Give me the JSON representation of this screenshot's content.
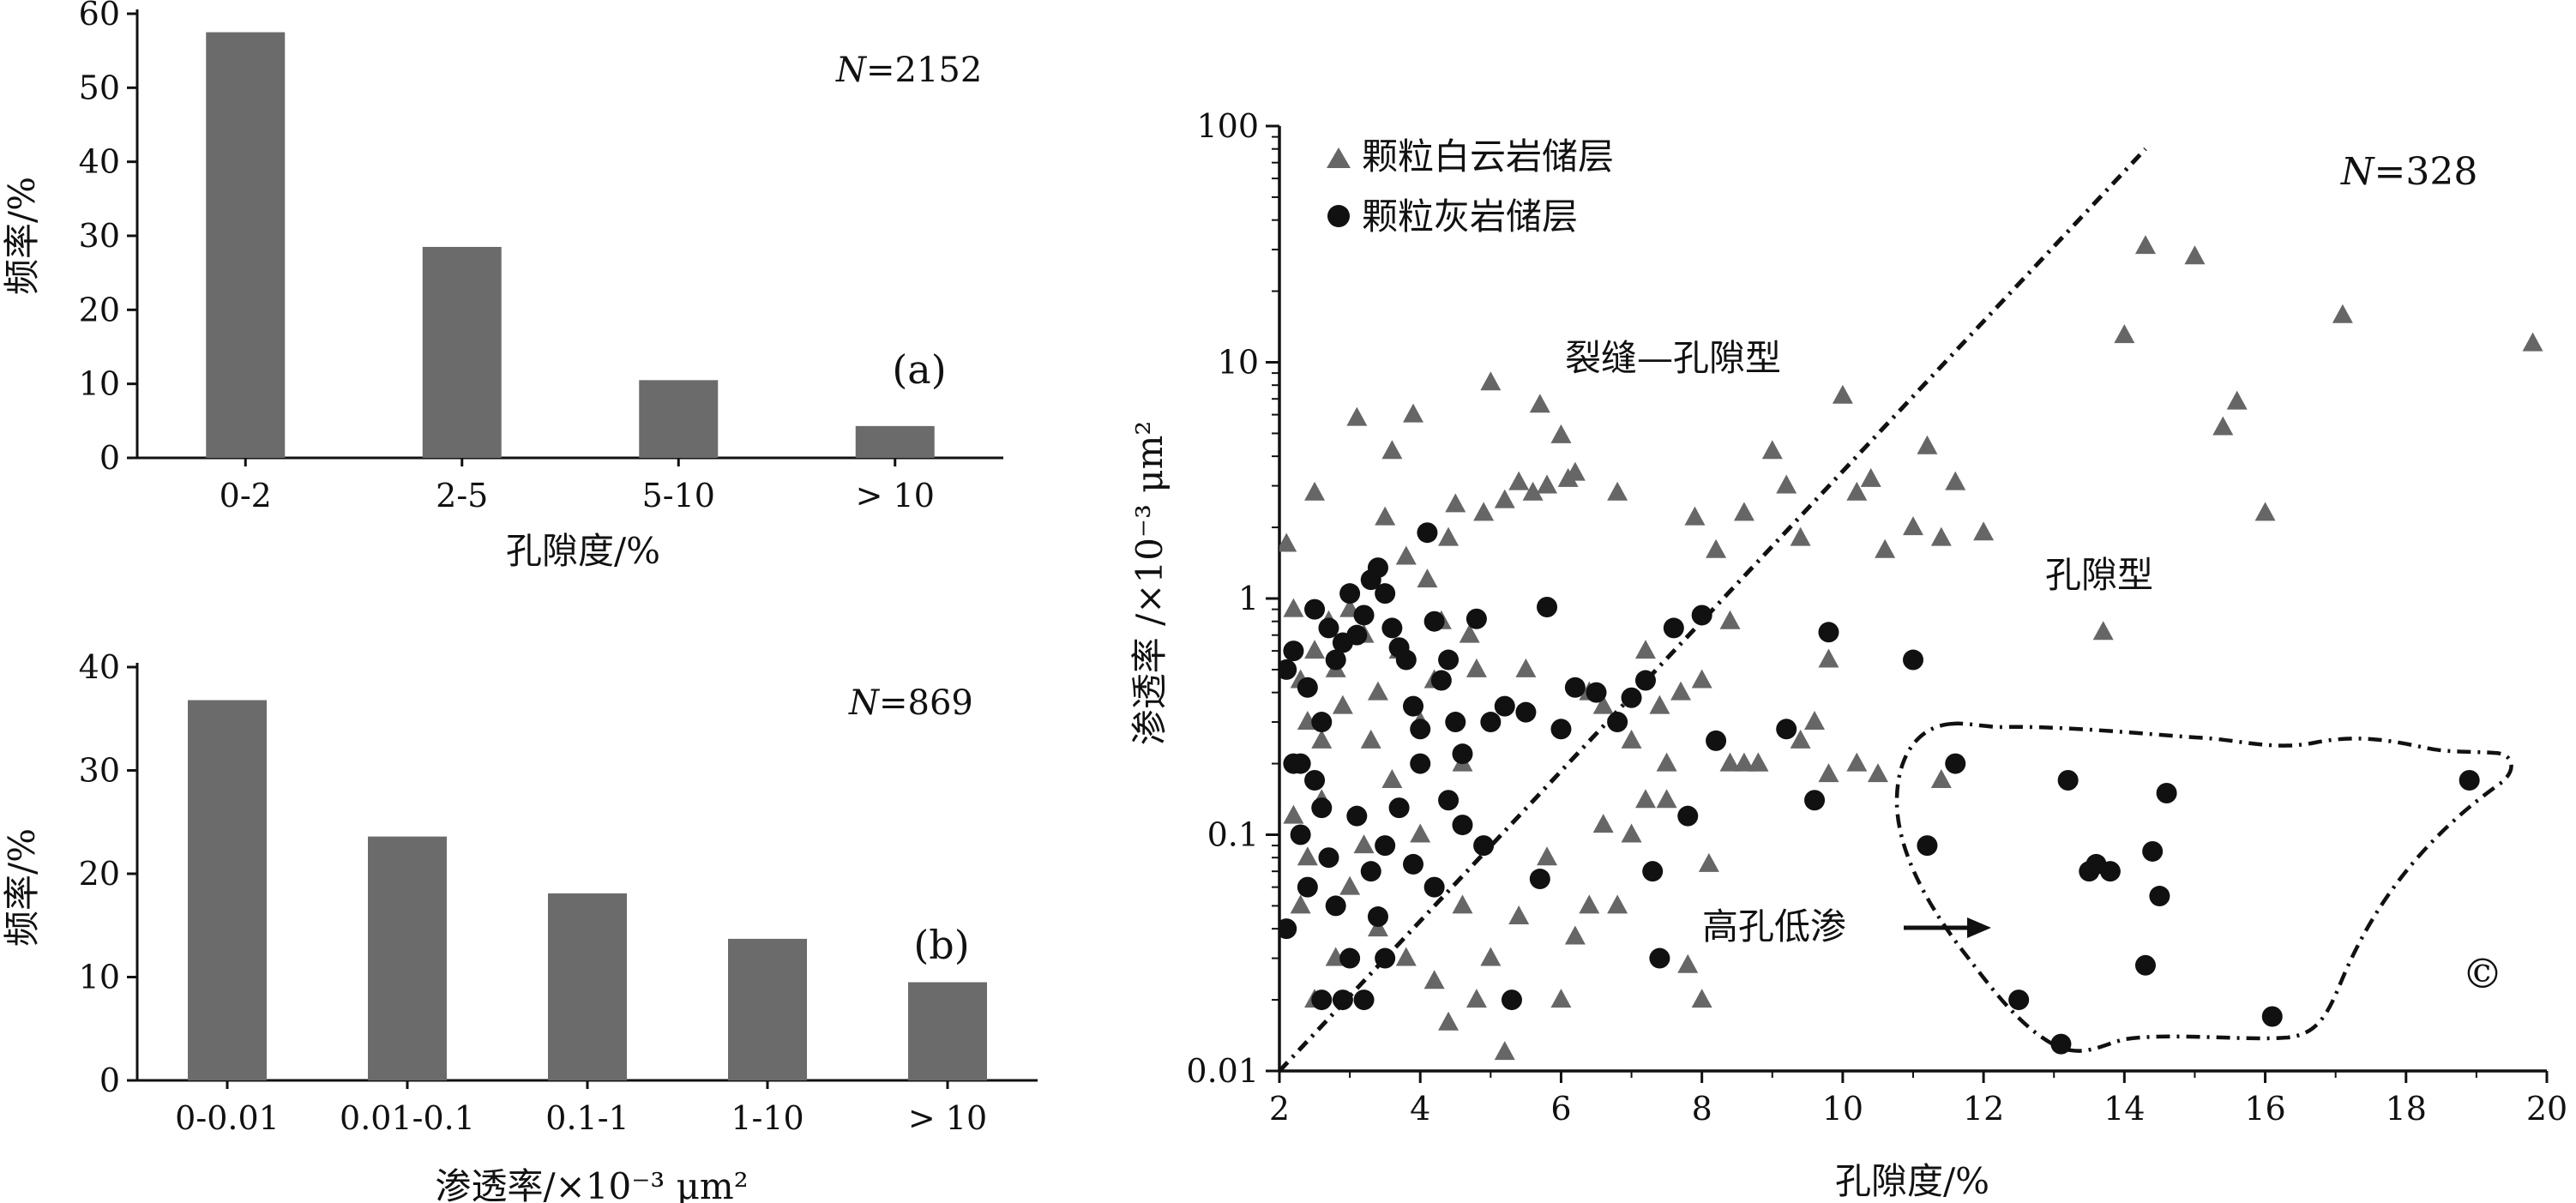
{
  "chart_data": [
    {
      "panel": "(a)",
      "type": "bar",
      "n_label": "N=2152",
      "n_italic": "N",
      "n_value": "=2152",
      "ylabel": "频率/%",
      "xlabel": "孔隙度/%",
      "ylim": [
        0,
        60
      ],
      "yticks": [
        0,
        10,
        20,
        30,
        40,
        50,
        60
      ],
      "categories": [
        "0-2",
        "2-5",
        "5-10",
        "> 10"
      ],
      "values": [
        57.5,
        28.5,
        10.5,
        4.3
      ],
      "bar_color": "#6b6b6b"
    },
    {
      "panel": "(b)",
      "type": "bar",
      "n_label": "N=869",
      "n_italic": "N",
      "n_value": "=869",
      "ylabel": "频率/%",
      "xlabel": "渗透率/×10⁻³ μm²",
      "ylim": [
        0,
        40
      ],
      "yticks": [
        0,
        10,
        20,
        30,
        40
      ],
      "categories": [
        "0-0.01",
        "0.01-0.1",
        "0.1-1",
        "1-10",
        "> 10"
      ],
      "values": [
        36.8,
        23.6,
        18.1,
        13.7,
        9.5
      ],
      "bar_color": "#6b6b6b"
    },
    {
      "panel": "©",
      "type": "scatter",
      "n_label": "N=328",
      "n_italic": "N",
      "n_value": "=328",
      "xlabel": "孔隙度/%",
      "ylabel": "渗透率 /×10⁻³ μm²",
      "xlim": [
        2,
        20
      ],
      "ylim": [
        0.01,
        100
      ],
      "yscale": "log",
      "xticks": [
        2,
        4,
        6,
        8,
        10,
        12,
        14,
        16,
        18,
        20
      ],
      "yticks": [
        "0.01",
        "0.1",
        "1",
        "10",
        "100"
      ],
      "legend": {
        "placement": "top-left",
        "entries": [
          "颗粒白云岩储层",
          "颗粒灰岩储层"
        ]
      },
      "annotations": {
        "fracture_pore": "裂缝—孔隙型",
        "pore": "孔隙型",
        "high_por_low_perm": "高孔低渗"
      },
      "divider_line": {
        "from": [
          2,
          0.01
        ],
        "to": [
          14.3,
          80
        ]
      },
      "series": [
        {
          "name": "颗粒白云岩储层",
          "marker": "triangle",
          "color": "#666666",
          "points": [
            [
              2.1,
              1.7
            ],
            [
              2.2,
              0.9
            ],
            [
              2.3,
              0.45
            ],
            [
              2.4,
              0.3
            ],
            [
              2.5,
              2.8
            ],
            [
              2.5,
              0.6
            ],
            [
              2.6,
              0.25
            ],
            [
              2.7,
              0.8
            ],
            [
              2.8,
              0.5
            ],
            [
              2.9,
              0.35
            ],
            [
              3.0,
              0.9
            ],
            [
              3.1,
              5.8
            ],
            [
              3.2,
              0.7
            ],
            [
              3.3,
              0.25
            ],
            [
              3.4,
              0.4
            ],
            [
              3.5,
              2.2
            ],
            [
              3.6,
              4.2
            ],
            [
              3.7,
              0.6
            ],
            [
              3.8,
              1.5
            ],
            [
              3.9,
              6.0
            ],
            [
              4.0,
              0.3
            ],
            [
              4.1,
              1.2
            ],
            [
              4.2,
              0.45
            ],
            [
              4.3,
              0.8
            ],
            [
              4.4,
              1.8
            ],
            [
              4.5,
              2.5
            ],
            [
              4.6,
              0.2
            ],
            [
              4.7,
              0.7
            ],
            [
              4.8,
              0.5
            ],
            [
              4.9,
              2.3
            ],
            [
              5.0,
              8.2
            ],
            [
              5.2,
              2.6
            ],
            [
              5.4,
              3.1
            ],
            [
              5.5,
              0.5
            ],
            [
              5.6,
              2.8
            ],
            [
              5.7,
              6.6
            ],
            [
              5.8,
              3.0
            ],
            [
              6.0,
              4.9
            ],
            [
              6.1,
              3.2
            ],
            [
              6.2,
              3.4
            ],
            [
              6.4,
              0.4
            ],
            [
              6.6,
              0.35
            ],
            [
              6.8,
              2.8
            ],
            [
              7.0,
              0.25
            ],
            [
              7.2,
              0.6
            ],
            [
              7.4,
              0.35
            ],
            [
              7.5,
              0.2
            ],
            [
              7.7,
              0.4
            ],
            [
              7.9,
              2.2
            ],
            [
              8.0,
              0.45
            ],
            [
              8.2,
              1.6
            ],
            [
              8.4,
              0.8
            ],
            [
              8.6,
              2.3
            ],
            [
              8.8,
              0.2
            ],
            [
              9.0,
              4.2
            ],
            [
              9.2,
              3.0
            ],
            [
              9.4,
              1.8
            ],
            [
              9.6,
              0.3
            ],
            [
              9.8,
              0.55
            ],
            [
              10.0,
              7.2
            ],
            [
              10.2,
              2.8
            ],
            [
              10.4,
              3.2
            ],
            [
              10.6,
              1.6
            ],
            [
              11.0,
              2.0
            ],
            [
              11.2,
              4.4
            ],
            [
              11.4,
              1.8
            ],
            [
              11.6,
              3.1
            ],
            [
              12.0,
              1.9
            ],
            [
              13.7,
              0.72
            ],
            [
              14.0,
              13.0
            ],
            [
              14.3,
              31.0
            ],
            [
              15.0,
              28.0
            ],
            [
              15.4,
              5.3
            ],
            [
              15.6,
              6.8
            ],
            [
              16.0,
              2.3
            ],
            [
              17.1,
              15.8
            ],
            [
              19.8,
              12.0
            ],
            [
              2.2,
              0.12
            ],
            [
              2.3,
              0.05
            ],
            [
              2.4,
              0.08
            ],
            [
              2.5,
              0.02
            ],
            [
              2.6,
              0.14
            ],
            [
              2.8,
              0.03
            ],
            [
              3.0,
              0.06
            ],
            [
              3.2,
              0.09
            ],
            [
              3.4,
              0.04
            ],
            [
              3.6,
              0.17
            ],
            [
              3.8,
              0.03
            ],
            [
              4.0,
              0.1
            ],
            [
              4.2,
              0.024
            ],
            [
              4.4,
              0.016
            ],
            [
              4.6,
              0.05
            ],
            [
              4.8,
              0.02
            ],
            [
              5.0,
              0.03
            ],
            [
              5.2,
              0.012
            ],
            [
              5.4,
              0.045
            ],
            [
              5.8,
              0.08
            ],
            [
              6.0,
              0.02
            ],
            [
              6.2,
              0.037
            ],
            [
              6.4,
              0.05
            ],
            [
              6.6,
              0.11
            ],
            [
              6.8,
              0.05
            ],
            [
              7.0,
              0.1
            ],
            [
              7.2,
              0.14
            ],
            [
              7.5,
              0.14
            ],
            [
              7.8,
              0.028
            ],
            [
              8.0,
              0.02
            ],
            [
              8.1,
              0.075
            ],
            [
              8.4,
              0.2
            ],
            [
              8.6,
              0.2
            ],
            [
              8.8,
              0.2
            ],
            [
              9.4,
              0.25
            ],
            [
              9.8,
              0.18
            ],
            [
              10.2,
              0.2
            ],
            [
              10.5,
              0.18
            ],
            [
              11.4,
              0.17
            ]
          ]
        },
        {
          "name": "颗粒灰岩储层",
          "marker": "circle",
          "color": "#111111",
          "points": [
            [
              2.1,
              0.5
            ],
            [
              2.2,
              0.6
            ],
            [
              2.3,
              0.2
            ],
            [
              2.4,
              0.42
            ],
            [
              2.5,
              0.9
            ],
            [
              2.6,
              0.3
            ],
            [
              2.7,
              0.75
            ],
            [
              2.8,
              0.55
            ],
            [
              2.9,
              0.65
            ],
            [
              3.0,
              1.05
            ],
            [
              3.1,
              0.7
            ],
            [
              3.2,
              0.85
            ],
            [
              3.3,
              1.2
            ],
            [
              3.4,
              1.35
            ],
            [
              3.5,
              1.05
            ],
            [
              3.6,
              0.75
            ],
            [
              3.7,
              0.62
            ],
            [
              3.8,
              0.55
            ],
            [
              3.9,
              0.35
            ],
            [
              4.0,
              0.28
            ],
            [
              4.1,
              1.9
            ],
            [
              4.2,
              0.8
            ],
            [
              4.3,
              0.45
            ],
            [
              4.4,
              0.55
            ],
            [
              4.5,
              0.3
            ],
            [
              4.6,
              0.22
            ],
            [
              4.8,
              0.82
            ],
            [
              5.0,
              0.3
            ],
            [
              5.2,
              0.35
            ],
            [
              5.5,
              0.33
            ],
            [
              5.8,
              0.92
            ],
            [
              6.0,
              0.28
            ],
            [
              6.2,
              0.42
            ],
            [
              6.5,
              0.4
            ],
            [
              6.8,
              0.3
            ],
            [
              7.0,
              0.38
            ],
            [
              7.2,
              0.45
            ],
            [
              7.6,
              0.75
            ],
            [
              8.0,
              0.85
            ],
            [
              8.2,
              0.25
            ],
            [
              9.2,
              0.28
            ],
            [
              9.8,
              0.72
            ],
            [
              11.0,
              0.55
            ],
            [
              2.1,
              0.04
            ],
            [
              2.2,
              0.2
            ],
            [
              2.3,
              0.1
            ],
            [
              2.4,
              0.06
            ],
            [
              2.5,
              0.17
            ],
            [
              2.6,
              0.13
            ],
            [
              2.7,
              0.08
            ],
            [
              2.8,
              0.05
            ],
            [
              3.0,
              0.03
            ],
            [
              3.1,
              0.12
            ],
            [
              3.2,
              0.02
            ],
            [
              3.3,
              0.07
            ],
            [
              3.4,
              0.045
            ],
            [
              3.5,
              0.09
            ],
            [
              3.7,
              0.13
            ],
            [
              3.9,
              0.075
            ],
            [
              4.0,
              0.2
            ],
            [
              4.2,
              0.06
            ],
            [
              4.4,
              0.14
            ],
            [
              4.6,
              0.11
            ],
            [
              4.9,
              0.09
            ],
            [
              5.3,
              0.02
            ],
            [
              5.7,
              0.065
            ],
            [
              7.3,
              0.07
            ],
            [
              7.4,
              0.03
            ],
            [
              7.8,
              0.12
            ],
            [
              9.6,
              0.14
            ],
            [
              11.2,
              0.09
            ],
            [
              11.6,
              0.2
            ],
            [
              12.5,
              0.02
            ],
            [
              13.1,
              0.013
            ],
            [
              13.2,
              0.17
            ],
            [
              13.5,
              0.07
            ],
            [
              13.6,
              0.075
            ],
            [
              13.8,
              0.07
            ],
            [
              14.3,
              0.028
            ],
            [
              14.4,
              0.085
            ],
            [
              14.5,
              0.055
            ],
            [
              14.6,
              0.15
            ],
            [
              16.1,
              0.017
            ],
            [
              18.9,
              0.17
            ],
            [
              2.6,
              0.02
            ],
            [
              2.9,
              0.02
            ],
            [
              3.5,
              0.03
            ]
          ]
        }
      ]
    }
  ]
}
